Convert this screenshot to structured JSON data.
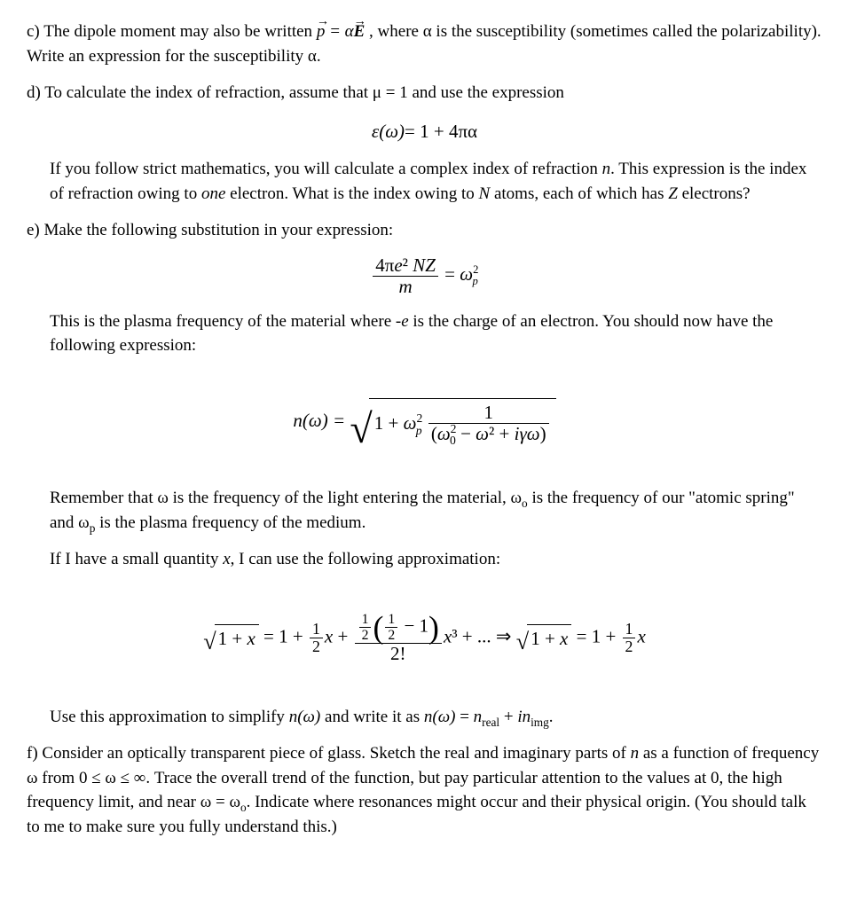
{
  "c": {
    "label": "c)",
    "text1": "The dipole moment may also be written ",
    "eq_inline": "p⃗ = αE⃗",
    "text2": " , where α is the susceptibility (sometimes called the polarizability).  Write an expression for the susceptibility α."
  },
  "d": {
    "label": "d)",
    "text1": "To calculate the index of refraction, assume that μ = 1 and use the expression",
    "eq1_lhs": "ε(ω)",
    "eq1_rhs": "= 1 + 4πα",
    "para1": "If you follow strict mathematics, you will calculate a complex index of refraction ",
    "n": "n",
    "para1b": ".  This expression is the index of refraction owing to ",
    "one": "one",
    "para1c": " electron.  What is the index owing to ",
    "N": "N",
    "para1d": " atoms, each of which has ",
    "Z": "Z",
    "para1e": " electrons?"
  },
  "e": {
    "label": "e)",
    "text1": "Make the following substitution in your expression:",
    "eq2_num": "4πe² NZ",
    "eq2_den": "m",
    "eq2_rhs": "= ω",
    "para1": "This is the plasma frequency of the material where -",
    "e_char": "e",
    "para1b": " is the charge of an electron.  You should now have the following expression:",
    "eq3_lhs": "n(ω) =",
    "eq3_a": "1 + ω",
    "eq3_frac_num": "1",
    "eq3_frac_den_a": "(ω",
    "eq3_frac_den_b": " − ω² + iγω)",
    "para2a": "Remember that ω is the frequency of the light entering the material,  ω",
    "para2b": " is the frequency of our \"atomic spring\" and ω",
    "para2c": " is the plasma frequency of the medium.",
    "para3": "If I have a small quantity ",
    "x": "x",
    "para3b": ", I can use the following approximation:",
    "eq4_a": "= 1 +",
    "eq4_lhs_body": "1 + x",
    "eq4_frac1_num": "1",
    "eq4_frac1_den": "2",
    "eq4_b": "x +",
    "eq4_num2a": "1",
    "eq4_num2b": "2",
    "eq4_num2c": "− 1",
    "eq4_den2": "2!",
    "eq4_c": "x³ + ... ⇒",
    "eq4_d": "= 1 +",
    "eq4_e": "x",
    "para4a": "Use this approximation to simplify ",
    "nw": "n(ω)",
    "para4b": " and write it as ",
    "para4c": " = ",
    "nreal": "n",
    "real": "real",
    "plus": " + ",
    "i": "i",
    "nimg": "n",
    "img": "img",
    "dot": "."
  },
  "f": {
    "label": "f)",
    "text": "Consider an optically transparent piece of glass.  Sketch the real and imaginary parts of ",
    "n": "n",
    "text2": " as a function of frequency ω from 0 ≤ ω ≤ ∞.  Trace the overall trend of the function, but pay particular attention to the values at 0, the high frequency limit, and near ω = ω",
    "text3": ".  Indicate where resonances might occur and their physical origin.  (You should talk to me to make sure you fully understand this.)"
  }
}
